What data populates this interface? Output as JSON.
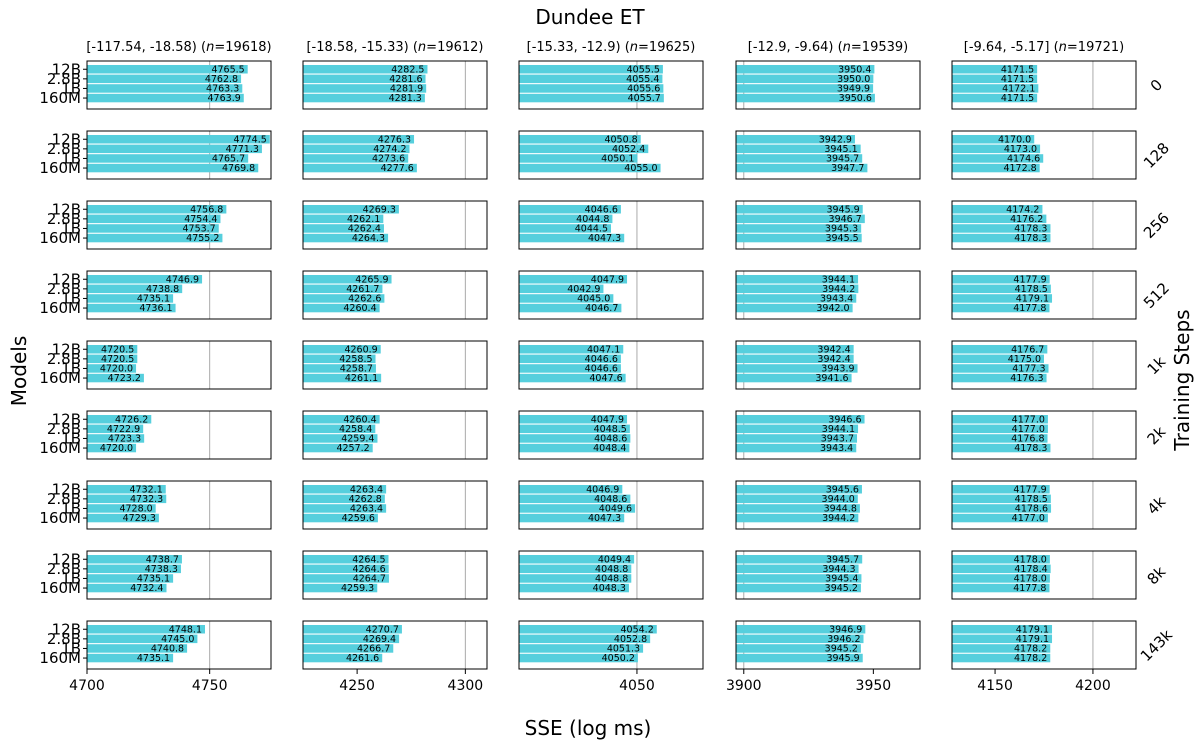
{
  "chart_data": {
    "type": "bar",
    "title": "Dundee ET",
    "xlabel": "SSE (log ms)",
    "ylabel": "Models",
    "row_axis_label": "Training Steps",
    "models": [
      "12B",
      "2.8B",
      "1B",
      "160M"
    ],
    "bar_color": "#56CFDD",
    "reference_line_color": "#aaaaaa",
    "training_steps": [
      "0",
      "128",
      "256",
      "512",
      "1k",
      "2k",
      "4k",
      "8k",
      "143k"
    ],
    "columns": [
      {
        "bin": "[-117.54, -18.58)",
        "n_label": "n",
        "n_value": "=19618)",
        "xlim": [
          4700,
          4775
        ],
        "ticks": [
          4700,
          4750
        ],
        "tick_labels": [
          "4700",
          "4750"
        ],
        "reference_line": 4750,
        "values": [
          [
            4765.5,
            4762.8,
            4763.3,
            4763.9
          ],
          [
            4774.5,
            4771.3,
            4765.7,
            4769.8
          ],
          [
            4756.8,
            4754.4,
            4753.7,
            4755.2
          ],
          [
            4746.9,
            4738.8,
            4735.1,
            4736.1
          ],
          [
            4720.5,
            4720.5,
            4720.0,
            4723.2
          ],
          [
            4726.2,
            4722.9,
            4723.3,
            4720.0
          ],
          [
            4732.1,
            4732.3,
            4728.0,
            4729.3
          ],
          [
            4738.7,
            4738.3,
            4735.1,
            4732.4
          ],
          [
            4748.1,
            4745.0,
            4740.8,
            4735.1
          ]
        ]
      },
      {
        "bin": "[-18.58, -15.33)",
        "n_label": "n",
        "n_value": "=19612)",
        "xlim": [
          4225,
          4310
        ],
        "ticks": [
          4250,
          4300
        ],
        "tick_labels": [
          "4250",
          "4300"
        ],
        "reference_line": 4300,
        "values": [
          [
            4282.5,
            4281.6,
            4281.9,
            4281.3
          ],
          [
            4276.3,
            4274.2,
            4273.6,
            4277.6
          ],
          [
            4269.3,
            4262.1,
            4262.4,
            4264.3
          ],
          [
            4265.9,
            4261.7,
            4262.6,
            4260.4
          ],
          [
            4260.9,
            4258.5,
            4258.7,
            4261.1
          ],
          [
            4260.4,
            4258.4,
            4259.4,
            4257.2
          ],
          [
            4263.4,
            4262.8,
            4263.4,
            4259.6
          ],
          [
            4264.5,
            4264.6,
            4264.7,
            4259.3
          ],
          [
            4270.7,
            4269.4,
            4266.7,
            4261.6
          ]
        ]
      },
      {
        "bin": "[-15.33, -12.9)",
        "n_label": "n",
        "n_value": "=19625)",
        "xlim": [
          4025,
          4064
        ],
        "ticks": [
          4050
        ],
        "tick_labels": [
          "4050"
        ],
        "reference_line": 4050,
        "values": [
          [
            4055.5,
            4055.4,
            4055.6,
            4055.7
          ],
          [
            4050.8,
            4052.4,
            4050.1,
            4055.0
          ],
          [
            4046.6,
            4044.8,
            4044.5,
            4047.3
          ],
          [
            4047.9,
            4042.9,
            4045.0,
            4046.7
          ],
          [
            4047.1,
            4046.6,
            4046.6,
            4047.6
          ],
          [
            4047.9,
            4048.5,
            4048.6,
            4048.4
          ],
          [
            4046.9,
            4048.6,
            4049.6,
            4047.3
          ],
          [
            4049.4,
            4048.8,
            4048.8,
            4048.3
          ],
          [
            4054.2,
            4052.8,
            4051.3,
            4050.2
          ]
        ]
      },
      {
        "bin": "[-12.9, -9.64)",
        "n_label": "n",
        "n_value": "=19539)",
        "xlim": [
          3897,
          3968
        ],
        "ticks": [
          3900,
          3950
        ],
        "tick_labels": [
          "3900",
          "3950"
        ],
        "reference_line": 3900,
        "values": [
          [
            3950.4,
            3950.0,
            3949.9,
            3950.6
          ],
          [
            3942.9,
            3945.1,
            3945.7,
            3947.7
          ],
          [
            3945.9,
            3946.7,
            3945.3,
            3945.5
          ],
          [
            3944.1,
            3944.2,
            3943.4,
            3942.0
          ],
          [
            3942.4,
            3942.4,
            3943.9,
            3941.6
          ],
          [
            3946.6,
            3944.1,
            3943.7,
            3943.4
          ],
          [
            3945.6,
            3944.0,
            3944.8,
            3944.2
          ],
          [
            3945.7,
            3944.3,
            3945.4,
            3945.2
          ],
          [
            3946.9,
            3946.2,
            3945.2,
            3945.9
          ]
        ]
      },
      {
        "bin": "[-9.64, -5.17]",
        "n_label": "n",
        "n_value": "=19721)",
        "xlim": [
          4128,
          4222
        ],
        "ticks": [
          4150,
          4200
        ],
        "tick_labels": [
          "4150",
          "4200"
        ],
        "reference_line": 4200,
        "values": [
          [
            4171.5,
            4171.5,
            4172.1,
            4171.5
          ],
          [
            4170.0,
            4173.0,
            4174.6,
            4172.8
          ],
          [
            4174.2,
            4176.2,
            4178.3,
            4178.3
          ],
          [
            4177.9,
            4178.5,
            4179.1,
            4177.8
          ],
          [
            4176.7,
            4175.0,
            4177.3,
            4176.3
          ],
          [
            4177.0,
            4177.0,
            4176.8,
            4178.3
          ],
          [
            4177.9,
            4178.5,
            4178.6,
            4177.0
          ],
          [
            4178.0,
            4178.4,
            4178.0,
            4177.8
          ],
          [
            4179.1,
            4179.1,
            4178.2,
            4178.2
          ]
        ]
      }
    ]
  }
}
